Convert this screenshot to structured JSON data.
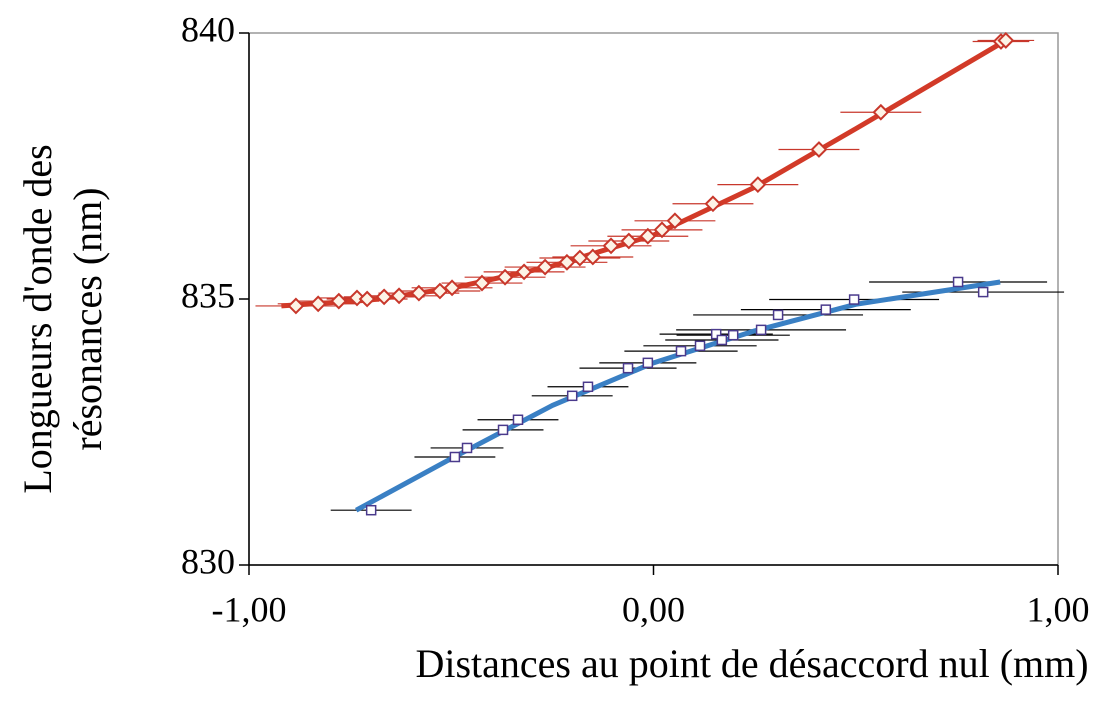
{
  "chart_data": {
    "type": "scatter",
    "xlabel": "Distances au point de désaccord nul (mm)",
    "ylabel": [
      "Longueurs d'onde des",
      "résonances (nm)"
    ],
    "label_color": "#33228a",
    "xlim": [
      -1,
      1
    ],
    "ylim": [
      830,
      840
    ],
    "xticks": [
      {
        "value": -1,
        "label": "-1,00"
      },
      {
        "value": 0,
        "label": "0,00"
      },
      {
        "value": 1,
        "label": "1,00"
      }
    ],
    "yticks": [
      830,
      835,
      840
    ],
    "series": [
      {
        "color": "#c8372b",
        "marker": "diamond",
        "fill": "#fdf3e6",
        "x": [
          -0.884,
          -0.829,
          -0.778,
          -0.733,
          -0.708,
          -0.666,
          -0.629,
          -0.58,
          -0.528,
          -0.498,
          -0.424,
          -0.367,
          -0.32,
          -0.268,
          -0.214,
          -0.182,
          -0.15,
          -0.105,
          -0.061,
          -0.014,
          0.021,
          0.053,
          0.147,
          0.258,
          0.409,
          0.562,
          0.859,
          0.871
        ],
        "values": [
          834.87,
          834.91,
          834.96,
          835.02,
          835.0,
          835.04,
          835.06,
          835.11,
          835.15,
          835.21,
          835.3,
          835.41,
          835.51,
          835.6,
          835.69,
          835.77,
          835.79,
          836.0,
          836.09,
          836.18,
          836.3,
          836.47,
          836.79,
          837.15,
          837.81,
          838.51,
          839.84,
          839.86
        ],
        "x_errors": [
          0.1,
          0.1,
          0.1,
          0.1,
          0.1,
          0.1,
          0.1,
          0.1,
          0.1,
          0.1,
          0.1,
          0.1,
          0.1,
          0.1,
          0.1,
          0.1,
          0.1,
          0.1,
          0.1,
          0.1,
          0.1,
          0.1,
          0.1,
          0.1,
          0.1,
          0.1,
          0.07,
          0.07
        ],
        "fit_color": "#d23a28",
        "fit_x": [
          -0.92,
          -0.7,
          -0.5,
          -0.25,
          0,
          0.25,
          0.5,
          0.88
        ],
        "fit_values": [
          834.87,
          834.98,
          835.2,
          835.62,
          836.2,
          837.1,
          838.2,
          839.9
        ]
      },
      {
        "color": "#4a3a8c",
        "marker": "square",
        "fill": "#ffffff",
        "x": [
          -0.698,
          -0.491,
          -0.461,
          -0.372,
          -0.335,
          -0.201,
          -0.162,
          -0.063,
          -0.014,
          0.068,
          0.115,
          0.155,
          0.169,
          0.197,
          0.266,
          0.308,
          0.426,
          0.496,
          0.753,
          0.815
        ],
        "values": [
          831.03,
          832.03,
          832.2,
          832.54,
          832.73,
          833.18,
          833.35,
          833.7,
          833.8,
          834.02,
          834.12,
          834.34,
          834.23,
          834.32,
          834.42,
          834.7,
          834.8,
          834.99,
          835.32,
          835.13
        ],
        "x_errors": [
          0.1,
          0.1,
          0.09,
          0.1,
          0.1,
          0.1,
          0.1,
          0.12,
          0.12,
          0.14,
          0.14,
          0.14,
          0.14,
          0.14,
          0.21,
          0.21,
          0.21,
          0.21,
          0.22,
          0.2
        ],
        "fit_color": "#3a80c4",
        "fit_x": [
          -0.735,
          -0.5,
          -0.25,
          0,
          0.25,
          0.5,
          0.857
        ],
        "fit_values": [
          831.03,
          832.0,
          833.0,
          833.8,
          834.4,
          834.9,
          835.32
        ]
      }
    ]
  }
}
